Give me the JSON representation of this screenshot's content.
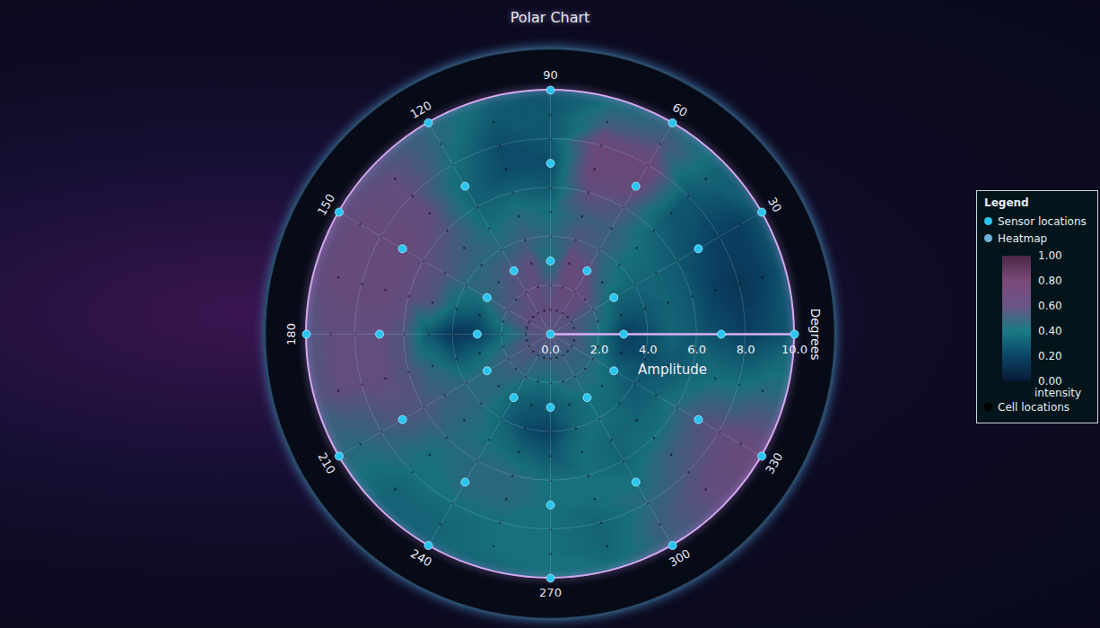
{
  "chart_data": {
    "type": "polar_heatmap",
    "title": "Polar Chart",
    "legend_title": "Legend",
    "legend": "right",
    "grid": true,
    "radial_axis": {
      "label": "Amplitude",
      "lim": [
        0,
        10
      ],
      "ticks": [
        {
          "value": 0,
          "label": "0.0"
        },
        {
          "value": 2,
          "label": "2.0"
        },
        {
          "value": 4,
          "label": "4.0"
        },
        {
          "value": 6,
          "label": "6.0"
        },
        {
          "value": 8,
          "label": "8.0"
        },
        {
          "value": 10,
          "label": "10.0"
        }
      ]
    },
    "angular_axis": {
      "label": "Degrees",
      "ticks": [
        30,
        60,
        90,
        120,
        150,
        180,
        210,
        240,
        270,
        300,
        330
      ]
    },
    "series": [
      {
        "name": "Sensor locations",
        "type": "scatter",
        "color": "#29c4f0",
        "amplitude": [
          0,
          3,
          3,
          3,
          3,
          3,
          3,
          3,
          3,
          3,
          3,
          3,
          3,
          7,
          7,
          7,
          7,
          7,
          7,
          7,
          7,
          7,
          7,
          7,
          7,
          10,
          10,
          10,
          10,
          10,
          10,
          10,
          10,
          10,
          10,
          10,
          10
        ],
        "angle": [
          0,
          0,
          30,
          60,
          90,
          120,
          150,
          180,
          210,
          240,
          270,
          300,
          330,
          0,
          30,
          60,
          90,
          120,
          150,
          180,
          210,
          240,
          270,
          300,
          330,
          0,
          30,
          60,
          90,
          120,
          150,
          180,
          210,
          240,
          270,
          300,
          330
        ]
      },
      {
        "name": "Heatmap",
        "type": "heatmap",
        "color": "#6fb3dc",
        "cells": {
          "angle": [
            0,
            15,
            30,
            45,
            60,
            75,
            90,
            105,
            120,
            135,
            150,
            165,
            180,
            195,
            210,
            225,
            240,
            255,
            270,
            285,
            300,
            315,
            330,
            345
          ],
          "amplitude": [
            1,
            2,
            3,
            4,
            5,
            6,
            7,
            8,
            9,
            10
          ],
          "intensity": [
            [
              0.55,
              0.4,
              0.2,
              0.25,
              0.35,
              0.3,
              0.25,
              0.2,
              0.25,
              0.3
            ],
            [
              0.55,
              0.45,
              0.3,
              0.3,
              0.35,
              0.3,
              0.2,
              0.15,
              0.2,
              0.3
            ],
            [
              0.55,
              0.5,
              0.35,
              0.35,
              0.35,
              0.3,
              0.25,
              0.2,
              0.2,
              0.3
            ],
            [
              0.6,
              0.6,
              0.45,
              0.4,
              0.4,
              0.35,
              0.3,
              0.3,
              0.35,
              0.35
            ],
            [
              0.6,
              0.65,
              0.6,
              0.5,
              0.5,
              0.55,
              0.65,
              0.7,
              0.55,
              0.45
            ],
            [
              0.6,
              0.65,
              0.65,
              0.55,
              0.5,
              0.6,
              0.7,
              0.7,
              0.5,
              0.4
            ],
            [
              0.6,
              0.55,
              0.4,
              0.45,
              0.4,
              0.3,
              0.25,
              0.3,
              0.3,
              0.3
            ],
            [
              0.6,
              0.6,
              0.6,
              0.5,
              0.45,
              0.35,
              0.25,
              0.25,
              0.3,
              0.35
            ],
            [
              0.6,
              0.6,
              0.55,
              0.45,
              0.4,
              0.35,
              0.35,
              0.4,
              0.45,
              0.45
            ],
            [
              0.6,
              0.55,
              0.5,
              0.45,
              0.5,
              0.55,
              0.6,
              0.6,
              0.6,
              0.55
            ],
            [
              0.6,
              0.55,
              0.45,
              0.45,
              0.55,
              0.6,
              0.65,
              0.65,
              0.65,
              0.6
            ],
            [
              0.55,
              0.45,
              0.3,
              0.35,
              0.55,
              0.6,
              0.65,
              0.65,
              0.65,
              0.6
            ],
            [
              0.5,
              0.35,
              0.2,
              0.15,
              0.3,
              0.55,
              0.6,
              0.6,
              0.6,
              0.55
            ],
            [
              0.55,
              0.45,
              0.35,
              0.3,
              0.45,
              0.55,
              0.6,
              0.6,
              0.6,
              0.55
            ],
            [
              0.55,
              0.5,
              0.45,
              0.45,
              0.5,
              0.55,
              0.55,
              0.5,
              0.45,
              0.45
            ],
            [
              0.55,
              0.5,
              0.45,
              0.45,
              0.45,
              0.45,
              0.4,
              0.4,
              0.35,
              0.35
            ],
            [
              0.5,
              0.45,
              0.35,
              0.35,
              0.4,
              0.45,
              0.45,
              0.4,
              0.35,
              0.35
            ],
            [
              0.5,
              0.4,
              0.3,
              0.25,
              0.35,
              0.45,
              0.45,
              0.4,
              0.4,
              0.35
            ],
            [
              0.5,
              0.4,
              0.3,
              0.2,
              0.3,
              0.4,
              0.4,
              0.4,
              0.4,
              0.4
            ],
            [
              0.5,
              0.45,
              0.35,
              0.35,
              0.4,
              0.4,
              0.4,
              0.35,
              0.35,
              0.4
            ],
            [
              0.5,
              0.45,
              0.4,
              0.4,
              0.35,
              0.35,
              0.4,
              0.45,
              0.5,
              0.5
            ],
            [
              0.5,
              0.45,
              0.4,
              0.35,
              0.35,
              0.4,
              0.5,
              0.55,
              0.6,
              0.6
            ],
            [
              0.5,
              0.45,
              0.35,
              0.3,
              0.35,
              0.45,
              0.55,
              0.6,
              0.65,
              0.65
            ],
            [
              0.55,
              0.4,
              0.25,
              0.25,
              0.3,
              0.35,
              0.4,
              0.4,
              0.45,
              0.45
            ]
          ]
        },
        "colorbar": {
          "label": "intensity",
          "lim": [
            0,
            1
          ],
          "ticks": [
            {
              "value": 0,
              "label": "0.00"
            },
            {
              "value": 0.2,
              "label": "0.20"
            },
            {
              "value": 0.4,
              "label": "0.40"
            },
            {
              "value": 0.6,
              "label": "0.60"
            },
            {
              "value": 0.8,
              "label": "0.80"
            },
            {
              "value": 1,
              "label": "1.00"
            }
          ],
          "colors": [
            "#0a1a34",
            "#0b4468",
            "#1a7a86",
            "#6a5488",
            "#7a4a78",
            "#4a2844"
          ]
        }
      },
      {
        "name": "Cell locations",
        "type": "scatter",
        "color": "#000000"
      }
    ]
  }
}
